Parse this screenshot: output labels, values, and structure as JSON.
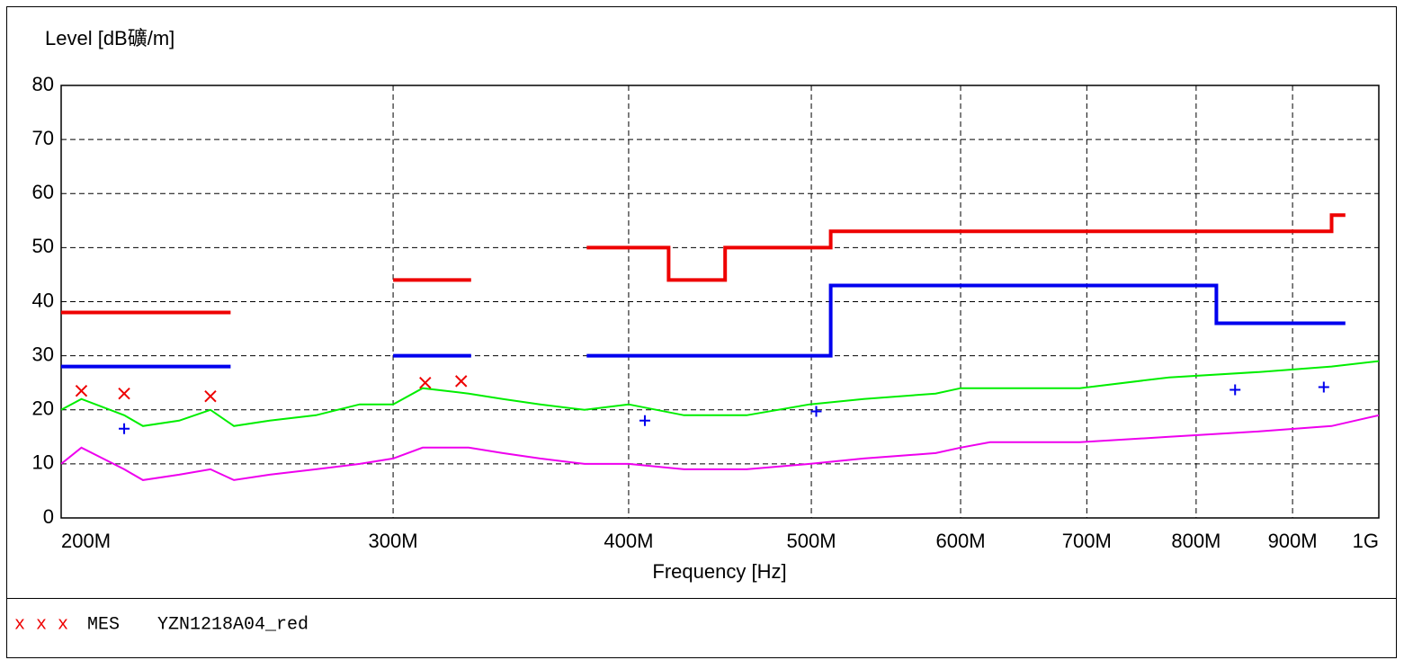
{
  "chart_data": {
    "type": "line",
    "y_label": "Level [dB礦/m]",
    "x_label": "Frequency [Hz]",
    "xscale": "log",
    "xlim": [
      200000000,
      1000000000
    ],
    "xticks": [
      {
        "value": 200000000,
        "label": "200M"
      },
      {
        "value": 300000000,
        "label": "300M"
      },
      {
        "value": 400000000,
        "label": "400M"
      },
      {
        "value": 500000000,
        "label": "500M"
      },
      {
        "value": 600000000,
        "label": "600M"
      },
      {
        "value": 700000000,
        "label": "700M"
      },
      {
        "value": 800000000,
        "label": "800M"
      },
      {
        "value": 900000000,
        "label": "900M"
      },
      {
        "value": 1000000000,
        "label": "1G"
      }
    ],
    "ylim": [
      0,
      80
    ],
    "yticks": [
      0,
      10,
      20,
      30,
      40,
      50,
      60,
      70,
      80
    ],
    "grid": true,
    "series": [
      {
        "color": "#00ee00",
        "width": 2,
        "x": [
          200000000,
          205000000,
          216000000,
          221000000,
          231000000,
          240000000,
          247000000,
          258000000,
          273000000,
          288000000,
          300000000,
          311000000,
          329000000,
          343000000,
          359000000,
          379000000,
          400000000,
          428000000,
          462000000,
          499000000,
          533000000,
          582000000,
          600000000,
          622000000,
          694000000,
          774000000,
          864000000,
          944000000,
          1000000000
        ],
        "values": [
          20,
          22,
          19,
          17,
          18,
          20,
          17,
          18,
          19,
          21,
          21,
          24,
          23,
          22,
          21,
          20,
          21,
          19,
          19,
          21,
          22,
          23,
          24,
          24,
          24,
          26,
          27,
          28,
          29
        ]
      },
      {
        "color": "#ee00ee",
        "width": 2,
        "x": [
          200000000,
          205000000,
          216000000,
          221000000,
          231000000,
          240000000,
          247000000,
          258000000,
          273000000,
          288000000,
          300000000,
          311000000,
          329000000,
          343000000,
          359000000,
          379000000,
          400000000,
          428000000,
          462000000,
          499000000,
          533000000,
          582000000,
          600000000,
          622000000,
          694000000,
          774000000,
          864000000,
          944000000,
          1000000000
        ],
        "values": [
          10,
          13,
          9,
          7,
          8,
          9,
          7,
          8,
          9,
          10,
          11,
          13,
          13,
          12,
          11,
          10,
          10,
          9,
          9,
          10,
          11,
          12,
          13,
          14,
          14,
          15,
          16,
          17,
          19
        ]
      },
      {
        "color": "#ee0000",
        "width": 4,
        "x": [
          200000000,
          246000000,
          270000000,
          300000000,
          330000000,
          350000000,
          380000000,
          420000000,
          420000000,
          450000000,
          450000000,
          512000000,
          512000000,
          944000000,
          944000000,
          960000000
        ],
        "values": [
          38,
          38,
          null,
          44,
          44,
          null,
          50,
          50,
          44,
          44,
          50,
          50,
          53,
          53,
          56,
          56
        ]
      },
      {
        "color": "#0000ee",
        "width": 4,
        "x": [
          200000000,
          246000000,
          270000000,
          300000000,
          330000000,
          350000000,
          380000000,
          512000000,
          512000000,
          820000000,
          820000000,
          960000000
        ],
        "values": [
          28,
          28,
          null,
          30,
          30,
          null,
          30,
          30,
          43,
          43,
          36,
          36
        ]
      },
      {
        "color": "#ee0000",
        "marker": "x",
        "x": [
          205000000,
          216000000,
          240000000,
          312000000,
          326000000
        ],
        "values": [
          23.5,
          23,
          22.5,
          25,
          25.3
        ]
      },
      {
        "color": "#0000ee",
        "marker": "+",
        "x": [
          216000000,
          408000000,
          503000000,
          839000000,
          935000000
        ],
        "values": [
          16.5,
          18,
          19.7,
          23.7,
          24.2
        ]
      }
    ],
    "legend": {
      "label": "MES",
      "file": "YZN1218A04_red",
      "color": "#ee0000"
    }
  }
}
